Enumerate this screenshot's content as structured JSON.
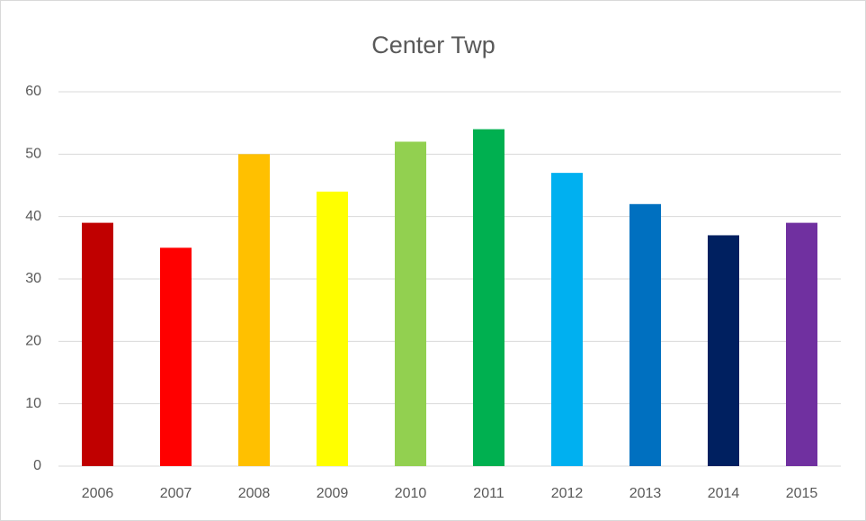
{
  "chart_data": {
    "type": "bar",
    "title": "Center Twp",
    "categories": [
      "2006",
      "2007",
      "2008",
      "2009",
      "2010",
      "2011",
      "2012",
      "2013",
      "2014",
      "2015"
    ],
    "values": [
      39,
      35,
      50,
      44,
      52,
      54,
      47,
      42,
      37,
      39
    ],
    "colors": [
      "#c00000",
      "#ff0000",
      "#ffc000",
      "#ffff00",
      "#92d050",
      "#00b050",
      "#00b0f0",
      "#0070c0",
      "#002060",
      "#7030a0"
    ],
    "ylim": [
      0,
      60
    ],
    "yticks": [
      0,
      10,
      20,
      30,
      40,
      50,
      60
    ],
    "grid": true
  }
}
